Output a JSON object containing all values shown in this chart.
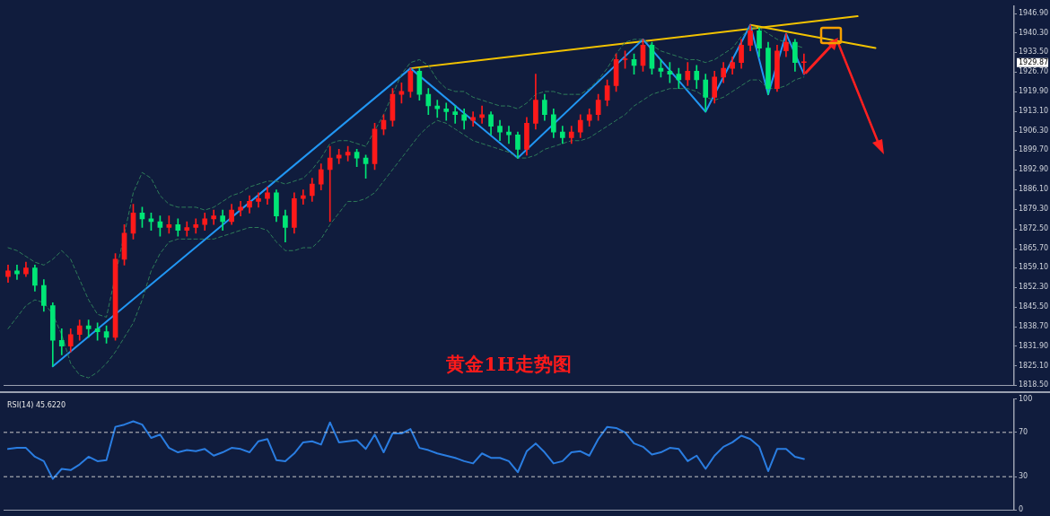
{
  "chart_data": [
    {
      "type": "candlestick",
      "annotations": [
        "黄金1H走势图",
        "1929.87"
      ],
      "categories": [
        null,
        null,
        null,
        null,
        null,
        null,
        null,
        null,
        null,
        null,
        null,
        null,
        null,
        null,
        null,
        null,
        null,
        null,
        null,
        null,
        null,
        null,
        null,
        null,
        null,
        null,
        null,
        null,
        null,
        null,
        null,
        null,
        null,
        null,
        null,
        null,
        null,
        null,
        null,
        null,
        null,
        null,
        null,
        null,
        null,
        null,
        null,
        null,
        null,
        null,
        null,
        null,
        null,
        null,
        null,
        null,
        null,
        null,
        null,
        null,
        null,
        null,
        null,
        null,
        null,
        null,
        null,
        null,
        null,
        null,
        null,
        null,
        null,
        null,
        null,
        null,
        null,
        null,
        null,
        null,
        null,
        null,
        null,
        null,
        null,
        null,
        null,
        null,
        null,
        null,
        null,
        null,
        null,
        null,
        null,
        null,
        null,
        null,
        null,
        null,
        null,
        null,
        null,
        null,
        null,
        null,
        null,
        null,
        null,
        null,
        null,
        null,
        null
      ],
      "ohlc": [
        [
          1856,
          1860,
          1854,
          1858
        ],
        [
          1858,
          1860,
          1855,
          1857
        ],
        [
          1857,
          1861,
          1856,
          1859
        ],
        [
          1859,
          1860,
          1851,
          1853
        ],
        [
          1853,
          1855,
          1844,
          1846
        ],
        [
          1846,
          1847,
          1825,
          1834
        ],
        [
          1834,
          1838,
          1829,
          1832
        ],
        [
          1832,
          1838,
          1830,
          1836
        ],
        [
          1836,
          1841,
          1834,
          1839
        ],
        [
          1839,
          1841,
          1835,
          1838
        ],
        [
          1838,
          1840,
          1834,
          1837
        ],
        [
          1837,
          1839,
          1833,
          1835
        ],
        [
          1835,
          1864,
          1834,
          1862
        ],
        [
          1862,
          1874,
          1860,
          1871
        ],
        [
          1871,
          1881,
          1869,
          1878
        ],
        [
          1878,
          1880,
          1873,
          1876
        ],
        [
          1876,
          1878,
          1872,
          1875
        ],
        [
          1875,
          1877,
          1870,
          1873
        ],
        [
          1873,
          1877,
          1871,
          1874
        ],
        [
          1874,
          1876,
          1870,
          1872
        ],
        [
          1872,
          1875,
          1870,
          1873
        ],
        [
          1873,
          1876,
          1871,
          1874
        ],
        [
          1874,
          1878,
          1872,
          1876
        ],
        [
          1876,
          1879,
          1874,
          1877
        ],
        [
          1877,
          1879,
          1872,
          1875
        ],
        [
          1875,
          1881,
          1874,
          1879
        ],
        [
          1879,
          1882,
          1877,
          1880
        ],
        [
          1880,
          1884,
          1878,
          1882
        ],
        [
          1882,
          1885,
          1880,
          1883
        ],
        [
          1883,
          1887,
          1881,
          1885
        ],
        [
          1885,
          1886,
          1875,
          1877
        ],
        [
          1877,
          1879,
          1868,
          1873
        ],
        [
          1873,
          1885,
          1871,
          1883
        ],
        [
          1883,
          1886,
          1881,
          1884
        ],
        [
          1884,
          1890,
          1882,
          1888
        ],
        [
          1888,
          1895,
          1886,
          1893
        ],
        [
          1893,
          1901,
          1875,
          1897
        ],
        [
          1897,
          1900,
          1895,
          1898
        ],
        [
          1898,
          1901,
          1896,
          1899
        ],
        [
          1899,
          1900,
          1894,
          1897
        ],
        [
          1897,
          1898,
          1890,
          1895
        ],
        [
          1895,
          1909,
          1893,
          1907
        ],
        [
          1907,
          1912,
          1905,
          1910
        ],
        [
          1910,
          1921,
          1908,
          1919
        ],
        [
          1919,
          1923,
          1916,
          1920
        ],
        [
          1920,
          1928,
          1918,
          1927
        ],
        [
          1927,
          1928,
          1917,
          1919
        ],
        [
          1919,
          1921,
          1912,
          1915
        ],
        [
          1915,
          1917,
          1911,
          1914
        ],
        [
          1914,
          1916,
          1910,
          1913
        ],
        [
          1913,
          1915,
          1909,
          1912
        ],
        [
          1912,
          1914,
          1907,
          1910
        ],
        [
          1910,
          1913,
          1908,
          1911
        ],
        [
          1911,
          1915,
          1909,
          1912
        ],
        [
          1912,
          1913,
          1905,
          1908
        ],
        [
          1908,
          1910,
          1903,
          1906
        ],
        [
          1906,
          1908,
          1902,
          1905
        ],
        [
          1905,
          1906,
          1897,
          1900
        ],
        [
          1900,
          1911,
          1898,
          1909
        ],
        [
          1909,
          1926,
          1907,
          1917
        ],
        [
          1917,
          1919,
          1910,
          1912
        ],
        [
          1912,
          1914,
          1904,
          1906
        ],
        [
          1906,
          1908,
          1902,
          1904
        ],
        [
          1904,
          1908,
          1902,
          1906
        ],
        [
          1906,
          1912,
          1904,
          1910
        ],
        [
          1910,
          1914,
          1908,
          1912
        ],
        [
          1912,
          1919,
          1910,
          1917
        ],
        [
          1917,
          1924,
          1915,
          1922
        ],
        [
          1922,
          1933,
          1920,
          1931
        ],
        [
          1931,
          1934,
          1928,
          1931
        ],
        [
          1931,
          1933,
          1926,
          1929
        ],
        [
          1929,
          1938,
          1927,
          1936
        ],
        [
          1936,
          1937,
          1926,
          1928
        ],
        [
          1928,
          1931,
          1925,
          1927
        ],
        [
          1927,
          1930,
          1923,
          1926
        ],
        [
          1926,
          1928,
          1921,
          1924
        ],
        [
          1924,
          1930,
          1922,
          1927
        ],
        [
          1927,
          1929,
          1921,
          1924
        ],
        [
          1924,
          1926,
          1913,
          1918
        ],
        [
          1918,
          1927,
          1916,
          1925
        ],
        [
          1925,
          1930,
          1923,
          1928
        ],
        [
          1928,
          1932,
          1926,
          1930
        ],
        [
          1930,
          1938,
          1928,
          1936
        ],
        [
          1936,
          1943,
          1934,
          1941
        ],
        [
          1941,
          1942,
          1932,
          1935
        ],
        [
          1935,
          1937,
          1919,
          1921
        ],
        [
          1921,
          1936,
          1920,
          1934
        ],
        [
          1934,
          1940,
          1932,
          1937
        ],
        [
          1937,
          1938,
          1927,
          1930
        ],
        [
          1930,
          1933,
          1926,
          1930
        ],
        null,
        null,
        null,
        null,
        null,
        null,
        null,
        null,
        null,
        null,
        null,
        null,
        null,
        null,
        null,
        null,
        null,
        null,
        null,
        null,
        null,
        null,
        null
      ],
      "colors": [
        "#ff1a1a",
        "#00e676",
        "#ff1a1a",
        "#00e676",
        "#00e676",
        "#00e676",
        "#00e676",
        "#ff1a1a",
        "#ff1a1a",
        "#00e676",
        "#00e676",
        "#00e676",
        "#ff1a1a",
        "#ff1a1a",
        "#ff1a1a",
        "#00e676",
        "#00e676",
        "#00e676",
        "#ff1a1a",
        "#00e676",
        "#ff1a1a",
        "#ff1a1a",
        "#ff1a1a",
        "#ff1a1a",
        "#00e676",
        "#ff1a1a",
        "#ff1a1a",
        "#ff1a1a",
        "#ff1a1a",
        "#ff1a1a",
        "#00e676",
        "#00e676",
        "#ff1a1a",
        "#ff1a1a",
        "#ff1a1a",
        "#ff1a1a",
        "#ff1a1a",
        "#ff1a1a",
        "#ff1a1a",
        "#00e676",
        "#00e676",
        "#ff1a1a",
        "#ff1a1a",
        "#ff1a1a",
        "#ff1a1a",
        "#ff1a1a",
        "#00e676",
        "#00e676",
        "#00e676",
        "#00e676",
        "#00e676",
        "#00e676",
        "#ff1a1a",
        "#ff1a1a",
        "#00e676",
        "#00e676",
        "#00e676",
        "#00e676",
        "#ff1a1a",
        "#ff1a1a",
        "#00e676",
        "#00e676",
        "#00e676",
        "#ff1a1a",
        "#ff1a1a",
        "#ff1a1a",
        "#ff1a1a",
        "#ff1a1a",
        "#ff1a1a",
        "#ff1a1a",
        "#00e676",
        "#ff1a1a",
        "#00e676",
        "#00e676",
        "#00e676",
        "#00e676",
        "#ff1a1a",
        "#00e676",
        "#00e676",
        "#ff1a1a",
        "#ff1a1a",
        "#ff1a1a",
        "#ff1a1a",
        "#ff1a1a",
        "#00e676",
        "#00e676",
        "#ff1a1a",
        "#ff1a1a",
        "#00e676",
        "#ff1a1a",
        null,
        null,
        null,
        null,
        null,
        null,
        null,
        null,
        null,
        null,
        null,
        null,
        null,
        null,
        null,
        null,
        null,
        null,
        null,
        null,
        null,
        null,
        null
      ],
      "series": [
        {
          "type": "line",
          "color": "#2f7d5a",
          "line_style": "dashed",
          "values": [
            1866,
            1865,
            1863,
            1861,
            1860,
            1862,
            1865,
            1862,
            1855,
            1848,
            1843,
            1842,
            null,
            null,
            1885,
            1892,
            1890,
            1884,
            1881,
            1880,
            1880,
            1880,
            1879,
            1880,
            1882,
            1884,
            1885,
            1887,
            1888,
            1889,
            1889,
            1888,
            1889,
            1890,
            1893,
            1897,
            1902,
            1903,
            1903,
            1902,
            1901,
            null,
            1912,
            null,
            1926,
            1930,
            1931,
            1929,
            1924,
            1921,
            1920,
            1920,
            1918,
            1917,
            1916,
            1915,
            1915,
            1914,
            1916,
            1919,
            1920,
            1920,
            1919,
            1919,
            1919,
            1921,
            1924,
            1928,
            1933,
            1937,
            1938,
            1938,
            1936,
            1934,
            1933,
            1932,
            1931,
            1931,
            1930,
            1931,
            1933,
            1935,
            1939,
            1942,
            1942,
            1940,
            1938,
            1937,
            1936,
            1935,
            null,
            null,
            null,
            null,
            null,
            null,
            null,
            null,
            null,
            null,
            null,
            null,
            null,
            null,
            null,
            null,
            null,
            null,
            null,
            null,
            null,
            null,
            null
          ]
        },
        {
          "type": "line",
          "color": "#2f7d5a",
          "line_style": "dashed",
          "values": [
            1838,
            1842,
            1846,
            1848,
            1847,
            1843,
            1836,
            1826,
            1822,
            1821,
            1823,
            1826,
            1830,
            1835,
            1840,
            1848,
            1858,
            1864,
            1868,
            1869,
            1869,
            1869,
            1869,
            1869,
            1870,
            1871,
            1872,
            1873,
            1873,
            1872,
            1868,
            1865,
            1865,
            1866,
            1866,
            1869,
            1874,
            1878,
            1882,
            1882,
            1883,
            1885,
            1889,
            1893,
            1897,
            1901,
            1905,
            1908,
            1910,
            1909,
            1907,
            1905,
            1903,
            1902,
            1901,
            1900,
            1899,
            1897,
            1897,
            1898,
            1900,
            1901,
            1902,
            1903,
            1903,
            1904,
            1906,
            1908,
            1910,
            1912,
            1915,
            1917,
            1919,
            1920,
            1921,
            1921,
            1921,
            1920,
            1918,
            1917,
            1918,
            1920,
            1922,
            1924,
            1924,
            1921,
            1921,
            1922,
            1924,
            1925,
            null,
            null,
            null,
            null,
            null,
            null,
            null,
            null,
            null,
            null,
            null,
            null,
            null,
            null,
            null,
            null,
            null,
            null,
            null,
            null,
            null,
            null,
            null
          ]
        },
        {
          "type": "line",
          "color": "#2196f3",
          "values": [
            null,
            null,
            null,
            null,
            null,
            1825,
            null,
            null,
            null,
            null,
            null,
            null,
            null,
            null,
            null,
            null,
            null,
            null,
            null,
            null,
            null,
            null,
            null,
            null,
            null,
            null,
            null,
            null,
            null,
            null,
            null,
            null,
            null,
            null,
            null,
            null,
            null,
            null,
            null,
            null,
            null,
            null,
            null,
            null,
            null,
            1928,
            null,
            null,
            null,
            null,
            null,
            null,
            null,
            null,
            null,
            null,
            null,
            1897,
            null,
            null,
            null,
            null,
            null,
            null,
            null,
            null,
            null,
            null,
            null,
            null,
            null,
            1938,
            null,
            null,
            null,
            null,
            null,
            null,
            1913,
            null,
            null,
            null,
            null,
            1943,
            null,
            1919,
            null,
            1940,
            null,
            1926,
            null,
            null,
            null,
            null,
            null,
            null,
            null,
            null,
            null,
            null,
            null,
            null,
            null,
            null,
            null,
            null,
            null,
            null,
            null,
            null,
            null,
            null,
            null
          ]
        },
        {
          "type": "line",
          "color": "#f2c200",
          "values": [
            null,
            null,
            null,
            null,
            null,
            null,
            null,
            null,
            null,
            null,
            null,
            null,
            null,
            null,
            null,
            null,
            null,
            null,
            null,
            null,
            null,
            null,
            null,
            null,
            null,
            null,
            null,
            null,
            null,
            null,
            null,
            null,
            null,
            null,
            null,
            null,
            null,
            null,
            null,
            null,
            null,
            null,
            null,
            null,
            null,
            1928,
            null,
            null,
            null,
            null,
            null,
            null,
            null,
            null,
            null,
            null,
            null,
            null,
            null,
            null,
            null,
            null,
            null,
            null,
            null,
            null,
            null,
            null,
            null,
            null,
            null,
            null,
            null,
            null,
            null,
            null,
            null,
            null,
            null,
            null,
            null,
            null,
            null,
            null,
            null,
            null,
            null,
            null,
            null,
            null,
            null,
            null,
            null,
            null,
            null,
            1946,
            null,
            null,
            null,
            null,
            null,
            null,
            null,
            null,
            null,
            null,
            null,
            null,
            null,
            null,
            null,
            null,
            null
          ]
        },
        {
          "type": "line",
          "color": "#f2c200",
          "values": [
            null,
            null,
            null,
            null,
            null,
            null,
            null,
            null,
            null,
            null,
            null,
            null,
            null,
            null,
            null,
            null,
            null,
            null,
            null,
            null,
            null,
            null,
            null,
            null,
            null,
            null,
            null,
            null,
            null,
            null,
            null,
            null,
            null,
            null,
            null,
            null,
            null,
            null,
            null,
            null,
            null,
            null,
            null,
            null,
            null,
            null,
            null,
            null,
            null,
            null,
            null,
            null,
            null,
            null,
            null,
            null,
            null,
            null,
            null,
            null,
            null,
            null,
            null,
            null,
            null,
            null,
            null,
            null,
            null,
            null,
            null,
            null,
            null,
            null,
            null,
            null,
            null,
            null,
            null,
            null,
            null,
            null,
            null,
            1943,
            null,
            null,
            null,
            null,
            null,
            null,
            null,
            null,
            null,
            null,
            null,
            null,
            null,
            1935,
            null,
            null,
            null,
            null,
            null,
            null,
            null,
            null,
            null,
            null,
            null,
            null,
            null,
            null,
            null
          ]
        }
      ],
      "ylim": [
        1818.5,
        1949.5
      ],
      "yticks": [
        {
          "value": 1946.9,
          "label": "1946.90"
        },
        {
          "value": 1940.3,
          "label": "1940.30"
        },
        {
          "value": 1933.5,
          "label": "1933.50"
        },
        {
          "value": 1926.7,
          "label": "1926.70"
        },
        {
          "value": 1919.9,
          "label": "1919.90"
        },
        {
          "value": 1913.1,
          "label": "1913.10"
        },
        {
          "value": 1906.3,
          "label": "1906.30"
        },
        {
          "value": 1899.7,
          "label": "1899.70"
        },
        {
          "value": 1892.9,
          "label": "1892.90"
        },
        {
          "value": 1886.1,
          "label": "1886.10"
        },
        {
          "value": 1879.3,
          "label": "1879.30"
        },
        {
          "value": 1872.5,
          "label": "1872.50"
        },
        {
          "value": 1865.7,
          "label": "1865.70"
        },
        {
          "value": 1859.1,
          "label": "1859.10"
        },
        {
          "value": 1852.3,
          "label": "1852.30"
        },
        {
          "value": 1845.5,
          "label": "1845.50"
        },
        {
          "value": 1838.7,
          "label": "1838.70"
        },
        {
          "value": 1831.9,
          "label": "1831.90"
        },
        {
          "value": 1825.1,
          "label": "1825.10"
        },
        {
          "value": 1818.5,
          "label": "1818.50"
        }
      ],
      "tick_labels": "y"
    },
    {
      "type": "line",
      "title": "RSI(14) 45.6220",
      "color": "#2a7de1",
      "categories": [
        null,
        null,
        null,
        null,
        null,
        null,
        null,
        null,
        null,
        null,
        null,
        null,
        null,
        null,
        null,
        null,
        null,
        null,
        null,
        null,
        null,
        null,
        null,
        null,
        null,
        null,
        null,
        null,
        null,
        null,
        null,
        null,
        null,
        null,
        null,
        null,
        null,
        null,
        null,
        null,
        null,
        null,
        null,
        null,
        null,
        null,
        null,
        null,
        null,
        null,
        null,
        null,
        null,
        null,
        null,
        null,
        null,
        null,
        null,
        null,
        null,
        null,
        null,
        null,
        null,
        null,
        null,
        null,
        null,
        null,
        null,
        null,
        null,
        null,
        null,
        null,
        null,
        null,
        null,
        null,
        null,
        null,
        null,
        null,
        null,
        null,
        null,
        null,
        null,
        null,
        null,
        null,
        null,
        null,
        null,
        null,
        null,
        null,
        null,
        null,
        null,
        null,
        null,
        null,
        null,
        null,
        null,
        null,
        null,
        null,
        null,
        null,
        null
      ],
      "values": [
        55,
        56,
        56,
        48,
        44,
        28,
        37,
        36,
        41,
        48,
        44,
        45,
        75,
        77,
        80,
        77,
        65,
        68,
        56,
        52,
        54,
        53,
        55,
        49,
        52,
        56,
        55,
        52,
        62,
        64,
        45,
        44,
        51,
        61,
        62,
        59,
        79,
        61,
        62,
        63,
        55,
        68,
        52,
        69,
        69,
        73,
        56,
        54,
        51,
        49,
        47,
        44,
        42,
        51,
        47,
        47,
        44,
        34,
        53,
        60,
        52,
        42,
        44,
        52,
        53,
        49,
        64,
        75,
        74,
        70,
        60,
        57,
        50,
        52,
        56,
        55,
        44,
        49,
        37,
        49,
        57,
        61,
        67,
        64,
        57,
        35,
        55,
        55,
        48,
        46,
        null,
        null,
        null,
        null,
        null,
        null,
        null,
        null,
        null,
        null,
        null,
        null,
        null,
        null,
        null,
        null,
        null,
        null,
        null,
        null,
        null,
        null,
        null
      ],
      "ylim": [
        0,
        100
      ],
      "yticks": [
        0,
        30,
        70,
        100
      ],
      "ref_lines": [
        {
          "axis": "y",
          "value": 30,
          "color": "#c8c8c8",
          "line_style": "dashed"
        },
        {
          "axis": "y",
          "value": 70,
          "color": "#c8c8c8",
          "line_style": "dashed"
        }
      ],
      "tick_labels": "y"
    }
  ]
}
